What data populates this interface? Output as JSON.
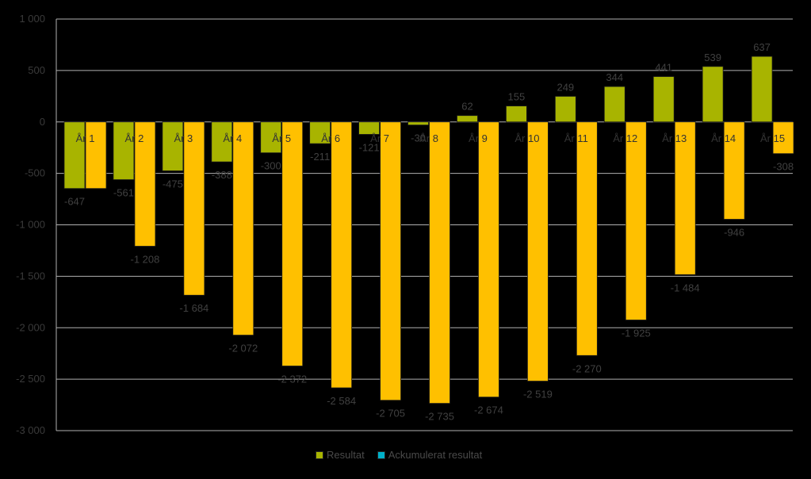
{
  "chart_data": {
    "type": "bar",
    "categories": [
      "År 1",
      "År 2",
      "År 3",
      "År 4",
      "År 5",
      "År 6",
      "År 7",
      "År 8",
      "År 9",
      "År 10",
      "År 11",
      "År 12",
      "År 13",
      "År 14",
      "År 15"
    ],
    "series": [
      {
        "name": "Resultat",
        "color": "#a8b400",
        "values": [
          -647,
          -561,
          -475,
          -388,
          -300,
          -211,
          -121,
          -30,
          62,
          155,
          249,
          344,
          441,
          539,
          637
        ],
        "labels": [
          "-647",
          "-561",
          "-475",
          "-388",
          "-300",
          "-211",
          "-121",
          "-30",
          "62",
          "155",
          "249",
          "344",
          "441",
          "539",
          "637"
        ]
      },
      {
        "name": "Ackumulerat resultat",
        "color": "#ffc000",
        "values": [
          -647,
          -1208,
          -1684,
          -2072,
          -2372,
          -2584,
          -2705,
          -2735,
          -2674,
          -2519,
          -2270,
          -1925,
          -1484,
          -946,
          -308
        ],
        "labels": [
          "",
          "-1 208",
          "-1 684",
          "-2 072",
          "-2 372",
          "-2 584",
          "-2 705",
          "-2 735",
          "-2 674",
          "-2 519",
          "-2 270",
          "-1 925",
          "-1 484",
          "-946",
          "-308"
        ]
      }
    ],
    "legend_swatch_colors": [
      "#a8b400",
      "#00b0c8"
    ],
    "ylim": [
      -3000,
      1000
    ],
    "yticks": [
      1000,
      500,
      0,
      -500,
      -1000,
      -1500,
      -2000,
      -2500,
      -3000
    ],
    "ytick_labels": [
      "1 000",
      "500",
      "0",
      "-500",
      "-1 000",
      "-1 500",
      "-2 000",
      "-2 500",
      "-3 000"
    ],
    "grid": true,
    "legend_position": "bottom"
  }
}
